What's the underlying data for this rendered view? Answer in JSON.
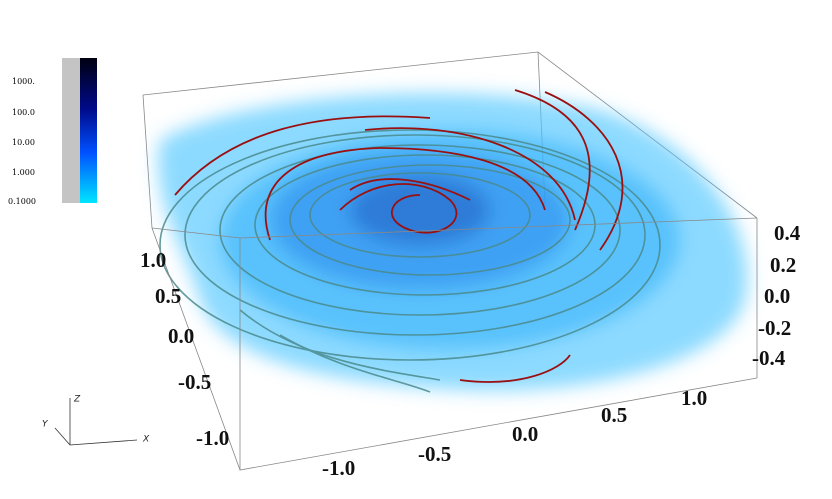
{
  "colorbar": {
    "labels": [
      "1000.",
      "100.0",
      "10.00",
      "1.000",
      "0.1000"
    ]
  },
  "axes": {
    "x_ticks": [
      "-1.0",
      "-0.5",
      "0.0",
      "0.5",
      "1.0"
    ],
    "y_ticks": [
      "1.0",
      "0.5",
      "0.0",
      "-0.5",
      "-1.0"
    ],
    "z_ticks": [
      "0.4",
      "0.2",
      "0.0",
      "-0.2",
      "-0.4"
    ]
  },
  "triad": {
    "x": "X",
    "y": "Y",
    "z": "Z"
  }
}
